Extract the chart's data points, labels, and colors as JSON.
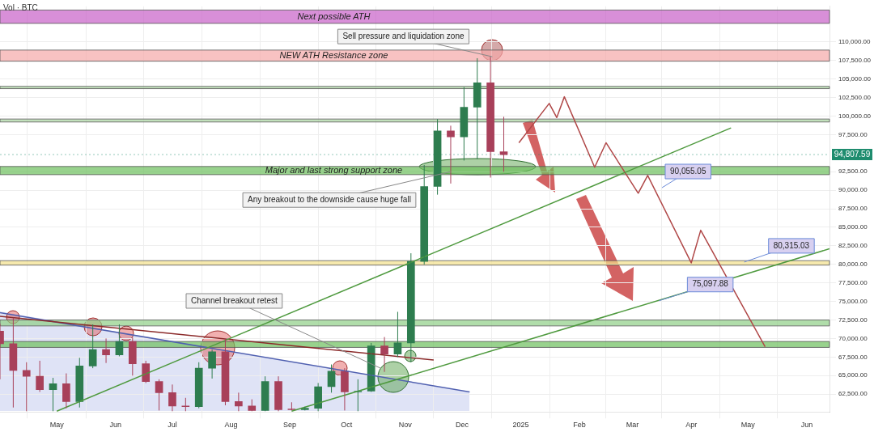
{
  "chart_data": {
    "type": "candlestick",
    "x": [
      "2024-04-01",
      "2024-04-08",
      "2024-04-15",
      "2024-04-22",
      "2024-04-29",
      "2024-05-06",
      "2024-05-13",
      "2024-05-20",
      "2024-05-27",
      "2024-06-03",
      "2024-06-10",
      "2024-06-17",
      "2024-06-24",
      "2024-07-01",
      "2024-07-08",
      "2024-07-15",
      "2024-07-22",
      "2024-07-29",
      "2024-08-05",
      "2024-08-12",
      "2024-08-19",
      "2024-08-26",
      "2024-09-02",
      "2024-09-09",
      "2024-09-16",
      "2024-09-23",
      "2024-09-30",
      "2024-10-07",
      "2024-10-14",
      "2024-10-21",
      "2024-10-28",
      "2024-11-04",
      "2024-11-11",
      "2024-11-18",
      "2024-11-25",
      "2024-12-02",
      "2024-12-09",
      "2024-12-16",
      "2024-12-23"
    ],
    "ohlc": [
      [
        71000,
        72000,
        64500,
        69300
      ],
      [
        69300,
        72800,
        60700,
        65700
      ],
      [
        65700,
        66800,
        60200,
        64900
      ],
      [
        64900,
        67000,
        62800,
        63100
      ],
      [
        63100,
        64700,
        60200,
        63900
      ],
      [
        63900,
        65300,
        60600,
        61500
      ],
      [
        61500,
        67400,
        60700,
        66300
      ],
      [
        66300,
        71900,
        66000,
        68500
      ],
      [
        68500,
        70000,
        66700,
        67800
      ],
      [
        67800,
        71900,
        67600,
        69600
      ],
      [
        69600,
        70100,
        65000,
        66600
      ],
      [
        66600,
        67000,
        64000,
        64200
      ],
      [
        64200,
        64500,
        60300,
        62700
      ],
      [
        62700,
        63800,
        60200,
        60900
      ],
      [
        60900,
        62000,
        60200,
        60800
      ],
      [
        60800,
        66800,
        60600,
        66000
      ],
      [
        66000,
        68500,
        64600,
        68200
      ],
      [
        68200,
        70000,
        61000,
        61500
      ],
      [
        61500,
        62700,
        60200,
        60900
      ],
      [
        60900,
        61800,
        60200,
        60300
      ],
      [
        60300,
        64900,
        60200,
        64200
      ],
      [
        64200,
        64900,
        60200,
        60400
      ],
      [
        60500,
        61400,
        60300,
        60400
      ],
      [
        60400,
        60800,
        60300,
        60600
      ],
      [
        60600,
        64000,
        60200,
        63500
      ],
      [
        63500,
        66500,
        62700,
        65600
      ],
      [
        65600,
        66000,
        60300,
        62800
      ],
      [
        62800,
        64500,
        60200,
        62900
      ],
      [
        62900,
        69400,
        62800,
        69000
      ],
      [
        69000,
        70200,
        65500,
        67900
      ],
      [
        67900,
        73600,
        67500,
        69400
      ],
      [
        69400,
        81500,
        66800,
        80400
      ],
      [
        80400,
        93400,
        80000,
        90500
      ],
      [
        90500,
        99600,
        89400,
        98000
      ],
      [
        98000,
        98700,
        90900,
        97200
      ],
      [
        97200,
        103900,
        94000,
        101200
      ],
      [
        101200,
        107800,
        94200,
        104500
      ],
      [
        104500,
        108000,
        91700,
        95200
      ],
      [
        95200,
        99900,
        92500,
        94800
      ]
    ],
    "colors": [
      "#a8405a",
      "#a8405a",
      "#a8405a",
      "#a8405a",
      "#2e7d4f",
      "#a8405a",
      "#2e7d4f",
      "#2e7d4f",
      "#a8405a",
      "#2e7d4f",
      "#a8405a",
      "#a8405a",
      "#a8405a",
      "#a8405a",
      "#a8405a",
      "#2e7d4f",
      "#2e7d4f",
      "#a8405a",
      "#a8405a",
      "#a8405a",
      "#2e7d4f",
      "#a8405a",
      "#a8405a",
      "#2e7d4f",
      "#2e7d4f",
      "#2e7d4f",
      "#a8405a",
      "#2e7d4f",
      "#2e7d4f",
      "#a8405a",
      "#2e7d4f",
      "#2e7d4f",
      "#2e7d4f",
      "#2e7d4f",
      "#a8405a",
      "#2e7d4f",
      "#2e7d4f",
      "#a8405a",
      "#a8405a"
    ],
    "series": [
      {
        "type": "line",
        "x": [
          "2024-05-01",
          "2025-04-22"
        ],
        "values": [
          60200,
          98400
        ],
        "color": "#4f9a3f"
      },
      {
        "type": "line",
        "x": [
          "2024-09-02",
          "2025-06-13"
        ],
        "values": [
          60200,
          82100
        ],
        "color": "#4f9a3f"
      },
      {
        "type": "line",
        "x": [
          "2024-04-01",
          "2024-11-16"
        ],
        "values": [
          73000,
          67100
        ],
        "color": "#8b2a2a"
      },
      {
        "type": "line",
        "x": [
          "2024-04-01",
          "2024-12-05"
        ],
        "values": [
          73500,
          62800
        ],
        "color": "#5060b0"
      },
      {
        "type": "line",
        "x": [
          "2024-12-31",
          "2025-01-16",
          "2025-01-20",
          "2025-01-24",
          "2025-02-09",
          "2025-02-15",
          "2025-03-04",
          "2025-03-09",
          "2025-04-01",
          "2025-04-06",
          "2025-05-10"
        ],
        "values": [
          96400,
          101700,
          99800,
          102600,
          93100,
          96400,
          89600,
          92000,
          80200,
          84600,
          68900
        ],
        "color": "#b04848"
      }
    ],
    "xlim": [
      "2024-04-01",
      "2025-06-13"
    ],
    "xticks": [
      {
        "value": "2024-05-01",
        "label": "May"
      },
      {
        "value": "2024-06-01",
        "label": "Jun"
      },
      {
        "value": "2024-07-01",
        "label": "Jul"
      },
      {
        "value": "2024-08-01",
        "label": "Aug"
      },
      {
        "value": "2024-09-01",
        "label": "Sep"
      },
      {
        "value": "2024-10-01",
        "label": "Oct"
      },
      {
        "value": "2024-11-01",
        "label": "Nov"
      },
      {
        "value": "2024-12-01",
        "label": "Dec"
      },
      {
        "value": "2025-01-01",
        "label": "2025"
      },
      {
        "value": "2025-02-01",
        "label": "Feb"
      },
      {
        "value": "2025-03-01",
        "label": "Mar"
      },
      {
        "value": "2025-04-01",
        "label": "Apr"
      },
      {
        "value": "2025-05-01",
        "label": "May"
      },
      {
        "value": "2025-06-01",
        "label": "Jun"
      }
    ],
    "ylim": [
      60100,
      114800
    ],
    "yticks": [
      {
        "value": 62500,
        "label": "62,500.00"
      },
      {
        "value": 65000,
        "label": "65,000.00"
      },
      {
        "value": 67500,
        "label": "67,500.00"
      },
      {
        "value": 70000,
        "label": "70,000.00"
      },
      {
        "value": 72500,
        "label": "72,500.00"
      },
      {
        "value": 75000,
        "label": "75,000.00"
      },
      {
        "value": 77500,
        "label": "77,500.00"
      },
      {
        "value": 80000,
        "label": "80,000.00"
      },
      {
        "value": 82500,
        "label": "82,500.00"
      },
      {
        "value": 85000,
        "label": "85,000.00"
      },
      {
        "value": 87500,
        "label": "87,500.00"
      },
      {
        "value": 90000,
        "label": "90,000.00"
      },
      {
        "value": 92500,
        "label": "92,500.00"
      },
      {
        "value": 97500,
        "label": "97,500.00"
      },
      {
        "value": 100000,
        "label": "100,000.00"
      },
      {
        "value": 102500,
        "label": "102,500.00"
      },
      {
        "value": 105000,
        "label": "105,000.00"
      },
      {
        "value": 107500,
        "label": "107,500.00"
      },
      {
        "value": 110000,
        "label": "110,000.00"
      }
    ],
    "grid": true,
    "legend": false,
    "bands": [
      {
        "axis": "y",
        "from": 112500,
        "to": 114300,
        "label": "Next possible ATH",
        "color": "#c860c8"
      },
      {
        "axis": "y",
        "from": 107400,
        "to": 108900,
        "label": "NEW ATH Resistance zone",
        "color": "#f5a8a8"
      },
      {
        "axis": "y",
        "from": 103700,
        "to": 104000,
        "color": "#a8d4a0"
      },
      {
        "axis": "y",
        "from": 99200,
        "to": 99600,
        "color": "#a8d4a0"
      },
      {
        "axis": "y",
        "from": 92100,
        "to": 93200,
        "label": "Major and last strong support zone",
        "color": "#6cbf5c"
      },
      {
        "axis": "y",
        "from": 79900,
        "to": 80500,
        "color": "#f2e08a"
      },
      {
        "axis": "y",
        "from": 71700,
        "to": 72500,
        "color": "#8fcf86"
      },
      {
        "axis": "y",
        "from": 68800,
        "to": 69600,
        "color": "#6cbf5c"
      }
    ],
    "ref_lines": [
      {
        "axis": "y",
        "value": 94807.59,
        "label": "94,807.59",
        "color": "#1e8c6e",
        "line_style": "dotted"
      }
    ],
    "annotations": [
      "Vol · BTC",
      {
        "text": "Sell pressure and liquidation zone",
        "x": "2024-12-17",
        "y": 108000
      },
      {
        "text": "Any breakout to the downside cause huge fall",
        "x": "2024-11-25",
        "y": 92500
      },
      "Channel breakout retest",
      "90,055.05",
      {
        "text": "80,315.03",
        "x": "2025-04-29",
        "y": 80315.03
      },
      {
        "text": "75,097.88",
        "x": "2025-03-15",
        "y": 75097.88
      }
    ]
  }
}
